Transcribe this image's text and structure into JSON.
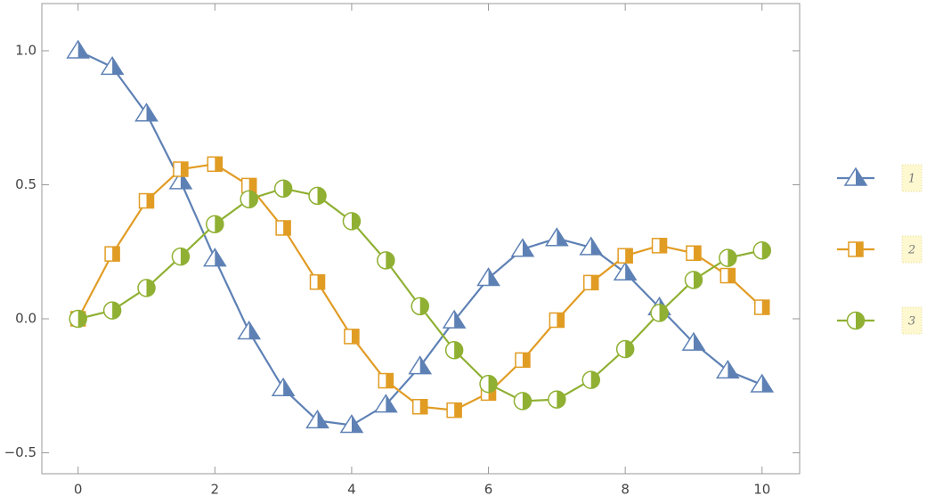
{
  "chart_data": {
    "type": "line",
    "x": [
      0,
      0.5,
      1,
      1.5,
      2,
      2.5,
      3,
      3.5,
      4,
      4.5,
      5,
      5.5,
      6,
      6.5,
      7,
      7.5,
      8,
      8.5,
      9,
      9.5,
      10
    ],
    "series": [
      {
        "name": "1",
        "color": "#5e81b5",
        "marker": "triangle",
        "values": [
          1,
          0.939,
          0.765,
          0.512,
          0.224,
          -0.048,
          -0.26,
          -0.38,
          -0.397,
          -0.321,
          -0.178,
          -0.007,
          0.151,
          0.26,
          0.3,
          0.266,
          0.172,
          0.042,
          -0.09,
          -0.194,
          -0.246
        ]
      },
      {
        "name": "2",
        "color": "#e19c24",
        "marker": "square",
        "values": [
          0,
          0.242,
          0.44,
          0.558,
          0.577,
          0.497,
          0.339,
          0.137,
          -0.066,
          -0.231,
          -0.328,
          -0.341,
          -0.277,
          -0.154,
          -0.005,
          0.135,
          0.235,
          0.273,
          0.245,
          0.161,
          0.043
        ]
      },
      {
        "name": "3",
        "color": "#8fb032",
        "marker": "circle",
        "values": [
          0,
          0.031,
          0.115,
          0.232,
          0.353,
          0.446,
          0.486,
          0.459,
          0.364,
          0.218,
          0.047,
          -0.117,
          -0.243,
          -0.307,
          -0.301,
          -0.228,
          -0.113,
          0.022,
          0.145,
          0.227,
          0.255
        ]
      }
    ],
    "xlim": [
      -0.53,
      10.55
    ],
    "ylim": [
      -0.578,
      1.176
    ],
    "xticks": [
      0,
      2,
      4,
      6,
      8,
      10
    ],
    "yticks": [
      {
        "value": -0.5,
        "label": "−0.5"
      },
      {
        "value": 0,
        "label": "0.0"
      },
      {
        "value": 0.5,
        "label": "0.5"
      },
      {
        "value": 1,
        "label": "1.0"
      }
    ],
    "grid": false,
    "legend": "right"
  }
}
